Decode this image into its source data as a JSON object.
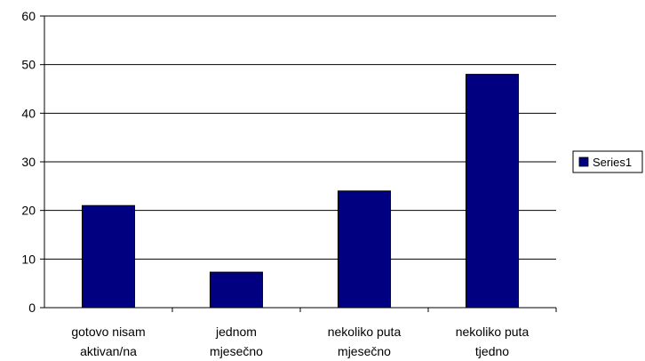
{
  "chart_data": {
    "type": "bar",
    "categories": [
      [
        "gotovo nisam",
        "aktivan/na"
      ],
      [
        "jednom",
        "mjesečno"
      ],
      [
        "nekoliko puta",
        "mjesečno"
      ],
      [
        "nekoliko puta",
        "tjedno"
      ]
    ],
    "series": [
      {
        "name": "Series1",
        "values": [
          21,
          7.3,
          24,
          48
        ],
        "color": "#000080"
      }
    ],
    "yticks": [
      0,
      10,
      20,
      30,
      40,
      50,
      60
    ],
    "ylim": [
      0,
      60
    ],
    "grid": true,
    "legend_position": "right",
    "title": "",
    "xlabel": "",
    "ylabel": ""
  }
}
